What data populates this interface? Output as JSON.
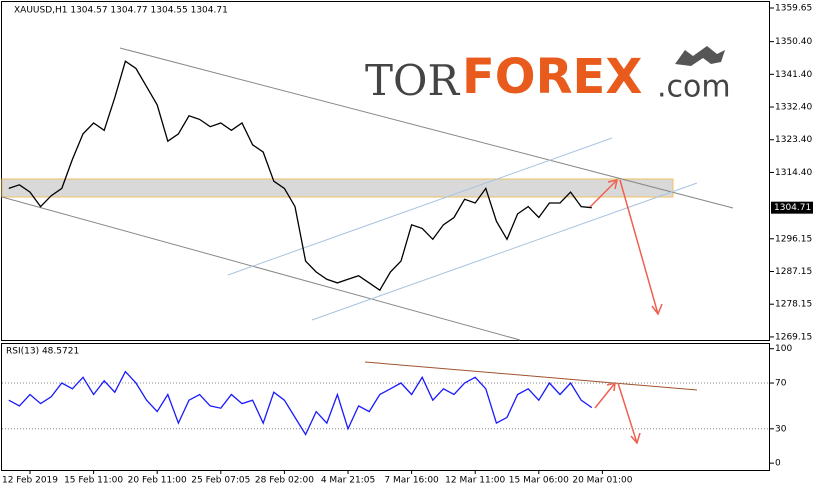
{
  "chart_data": [
    {
      "type": "line",
      "title": "XAUUSD,H1 1304.57 1304.77 1304.55 1304.71",
      "logo_parts": [
        "TOR",
        "FOREX",
        ".com"
      ],
      "series": [
        {
          "color": "#000000",
          "values": [
            1310,
            1311,
            1309,
            1305,
            1308,
            1310,
            1318,
            1325,
            1328,
            1326,
            1335,
            1345,
            1343,
            1338,
            1333,
            1323,
            1325,
            1330,
            1329,
            1327,
            1328,
            1326,
            1328,
            1322,
            1320,
            1312,
            1310,
            1305,
            1290,
            1287,
            1285,
            1284,
            1285,
            1286,
            1284,
            1282,
            1287,
            1290,
            1300,
            1299,
            1296,
            1300,
            1302,
            1307,
            1306,
            1310,
            1301,
            1296,
            1303,
            1305,
            1302,
            1306,
            1306,
            1309,
            1305,
            1304.71,
            null
          ],
          "value_labels": [
            null,
            null,
            null,
            null,
            null,
            null,
            null,
            null,
            null,
            null,
            null,
            null,
            null,
            null,
            null,
            null,
            null,
            null,
            null,
            null,
            null,
            null,
            null,
            null,
            null,
            null,
            null,
            null,
            null,
            null,
            null,
            null,
            null,
            null,
            null,
            null,
            null,
            null,
            null,
            null,
            null,
            null,
            null,
            null,
            null,
            null,
            null,
            null,
            null,
            null,
            null,
            null,
            null,
            null,
            null,
            "1304.71",
            null
          ]
        }
      ],
      "ylim": [
        1268.3,
        1361.3
      ],
      "yticks": [
        {
          "value": 1359.65,
          "label": "1359.65"
        },
        {
          "value": 1350.4,
          "label": "1350.40"
        },
        {
          "value": 1341.4,
          "label": "1341.40"
        },
        {
          "value": 1332.4,
          "label": "1332.40"
        },
        {
          "value": 1323.4,
          "label": "1323.40"
        },
        {
          "value": 1314.4,
          "label": "1314.40"
        },
        {
          "value": 1296.15,
          "label": "1296.15"
        },
        {
          "value": 1287.15,
          "label": "1287.15"
        },
        {
          "value": 1278.15,
          "label": "1278.15"
        },
        {
          "value": 1269.15,
          "label": "1269.15"
        }
      ]
    },
    {
      "type": "line",
      "title": "RSI(13) 48.5721",
      "categories": [
        null,
        null,
        "12 Feb 2019",
        null,
        null,
        null,
        null,
        null,
        "15 Feb 11:00",
        null,
        null,
        null,
        null,
        null,
        "20 Feb 11:00",
        null,
        null,
        null,
        null,
        null,
        "25 Feb 07:05",
        null,
        null,
        null,
        null,
        null,
        "28 Feb 02:00",
        null,
        null,
        null,
        null,
        null,
        "4 Mar 21:05",
        null,
        null,
        null,
        null,
        null,
        "7 Mar 16:00",
        null,
        null,
        null,
        null,
        null,
        "12 Mar 11:00",
        null,
        null,
        null,
        null,
        null,
        "15 Mar 06:00",
        null,
        null,
        null,
        null,
        null,
        "20 Mar 01:00"
      ],
      "series": [
        {
          "color": "#1a1aff",
          "values": [
            55,
            50,
            60,
            52,
            58,
            70,
            65,
            75,
            60,
            72,
            62,
            80,
            70,
            55,
            45,
            60,
            35,
            55,
            60,
            50,
            48,
            60,
            52,
            55,
            35,
            62,
            55,
            40,
            25,
            45,
            35,
            60,
            30,
            50,
            45,
            60,
            65,
            70,
            60,
            75,
            55,
            65,
            60,
            70,
            75,
            65,
            35,
            40,
            60,
            65,
            55,
            70,
            60,
            70,
            55,
            48.5721,
            null
          ]
        }
      ],
      "ylim": [
        -6,
        105
      ],
      "yticks": [
        0,
        30,
        70,
        100
      ],
      "level_lines": [
        30,
        70
      ]
    }
  ]
}
